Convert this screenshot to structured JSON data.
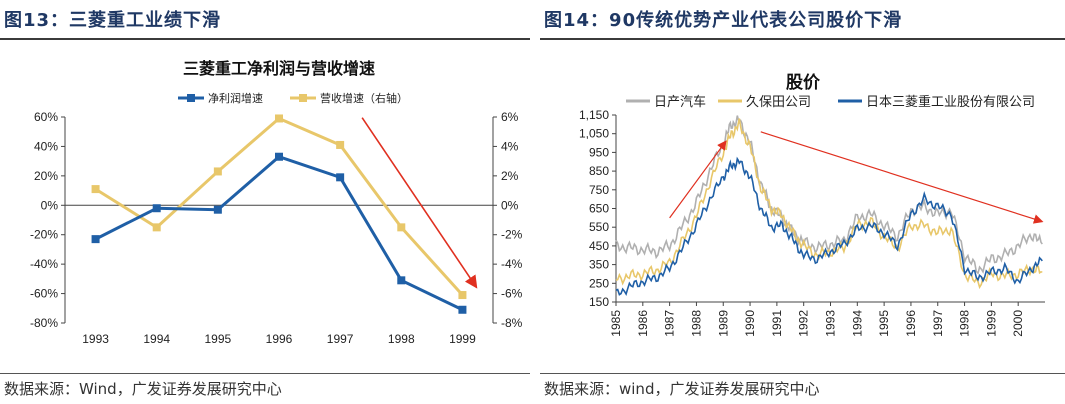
{
  "left": {
    "figure_title": "图13：三菱重工业绩下滑",
    "source": "数据来源：Wind，广发证券发展研究中心"
  },
  "right": {
    "figure_title": "图14：90传统优势产业代表公司股价下滑",
    "source": "数据来源：wind，广发证券发展研究中心"
  },
  "colors": {
    "blue": "#1f5fa6",
    "gold": "#e8c76a",
    "gray": "#b0b0b0",
    "arrow": "#e03020"
  },
  "chart_data": [
    {
      "type": "line",
      "title": "三菱重工净利润与营收增速",
      "categories": [
        "1993",
        "1994",
        "1995",
        "1996",
        "1997",
        "1998",
        "1999"
      ],
      "series": [
        {
          "name": "净利润增速",
          "axis": "left",
          "values": [
            -23,
            -2,
            -3,
            33,
            19,
            -51,
            -71
          ]
        },
        {
          "name": "营收增速（右轴）",
          "axis": "right",
          "values": [
            1.1,
            -1.5,
            2.3,
            5.9,
            4.1,
            -1.5,
            -6.1
          ]
        }
      ],
      "y_left": {
        "ylim": [
          -80,
          60
        ],
        "ticks": [
          60,
          40,
          20,
          0,
          -20,
          -40,
          -60,
          -80
        ],
        "tick_labels": [
          "60%",
          "40%",
          "20%",
          "0%",
          "-20%",
          "-40%",
          "-60%",
          "-80%"
        ]
      },
      "y_right": {
        "ylim": [
          -8,
          6
        ],
        "ticks": [
          6,
          4,
          2,
          0,
          -2,
          -4,
          -6,
          -8
        ],
        "tick_labels": [
          "6%",
          "4%",
          "2%",
          "0%",
          "-2%",
          "-4%",
          "-6%",
          "-8%"
        ]
      },
      "legend": "top",
      "annotations": [
        {
          "type": "arrow",
          "from": [
            "1997",
            -0.3
          ],
          "to": [
            "1999",
            -5.3
          ]
        }
      ]
    },
    {
      "type": "line",
      "title": "股价",
      "x": [
        1985.0,
        1985.5,
        1986.0,
        1986.5,
        1987.0,
        1987.5,
        1988.0,
        1988.5,
        1989.0,
        1989.3,
        1989.6,
        1990.0,
        1990.4,
        1990.8,
        1991.2,
        1991.6,
        1992.0,
        1992.5,
        1993.0,
        1993.5,
        1994.0,
        1994.5,
        1995.0,
        1995.5,
        1996.0,
        1996.5,
        1997.0,
        1997.5,
        1998.0,
        1998.5,
        1999.0,
        1999.5,
        2000.0,
        2000.5,
        2000.9
      ],
      "series": [
        {
          "name": "日产汽车",
          "values": [
            450,
            440,
            430,
            420,
            450,
            560,
            680,
            850,
            1000,
            1100,
            1120,
            1000,
            780,
            650,
            600,
            520,
            470,
            440,
            460,
            480,
            600,
            620,
            560,
            500,
            640,
            660,
            620,
            640,
            400,
            320,
            380,
            400,
            450,
            510,
            460
          ]
        },
        {
          "name": "久保田公司",
          "values": [
            270,
            290,
            300,
            320,
            360,
            480,
            610,
            790,
            950,
            1050,
            1100,
            980,
            760,
            650,
            610,
            520,
            450,
            400,
            420,
            440,
            560,
            580,
            500,
            440,
            560,
            560,
            520,
            540,
            300,
            250,
            300,
            290,
            300,
            330,
            310
          ]
        },
        {
          "name": "日本三菱重工业股份有限公司",
          "values": [
            190,
            230,
            260,
            280,
            330,
            440,
            560,
            700,
            820,
            880,
            900,
            820,
            650,
            550,
            560,
            480,
            400,
            380,
            420,
            460,
            540,
            560,
            520,
            450,
            620,
            700,
            660,
            620,
            330,
            280,
            310,
            330,
            260,
            330,
            370
          ]
        }
      ],
      "ylim": [
        150,
        1150
      ],
      "y_ticks": [
        150,
        250,
        350,
        450,
        550,
        650,
        750,
        850,
        950,
        1050,
        1150
      ],
      "y_tick_labels": [
        "150",
        "250",
        "350",
        "450",
        "550",
        "650",
        "750",
        "850",
        "950",
        "1,050",
        "1,150"
      ],
      "x_tick_labels": [
        "1985",
        "1986",
        "1987",
        "1988",
        "1989",
        "1990",
        "1991",
        "1992",
        "1993",
        "1994",
        "1995",
        "1996",
        "1997",
        "1998",
        "1999",
        "2000"
      ],
      "legend": "top",
      "annotations": [
        {
          "type": "arrow",
          "from": [
            1987.0,
            600
          ],
          "to": [
            1989.1,
            1010
          ]
        },
        {
          "type": "arrow",
          "from": [
            1990.4,
            1060
          ],
          "to": [
            2000.9,
            580
          ]
        }
      ]
    }
  ]
}
